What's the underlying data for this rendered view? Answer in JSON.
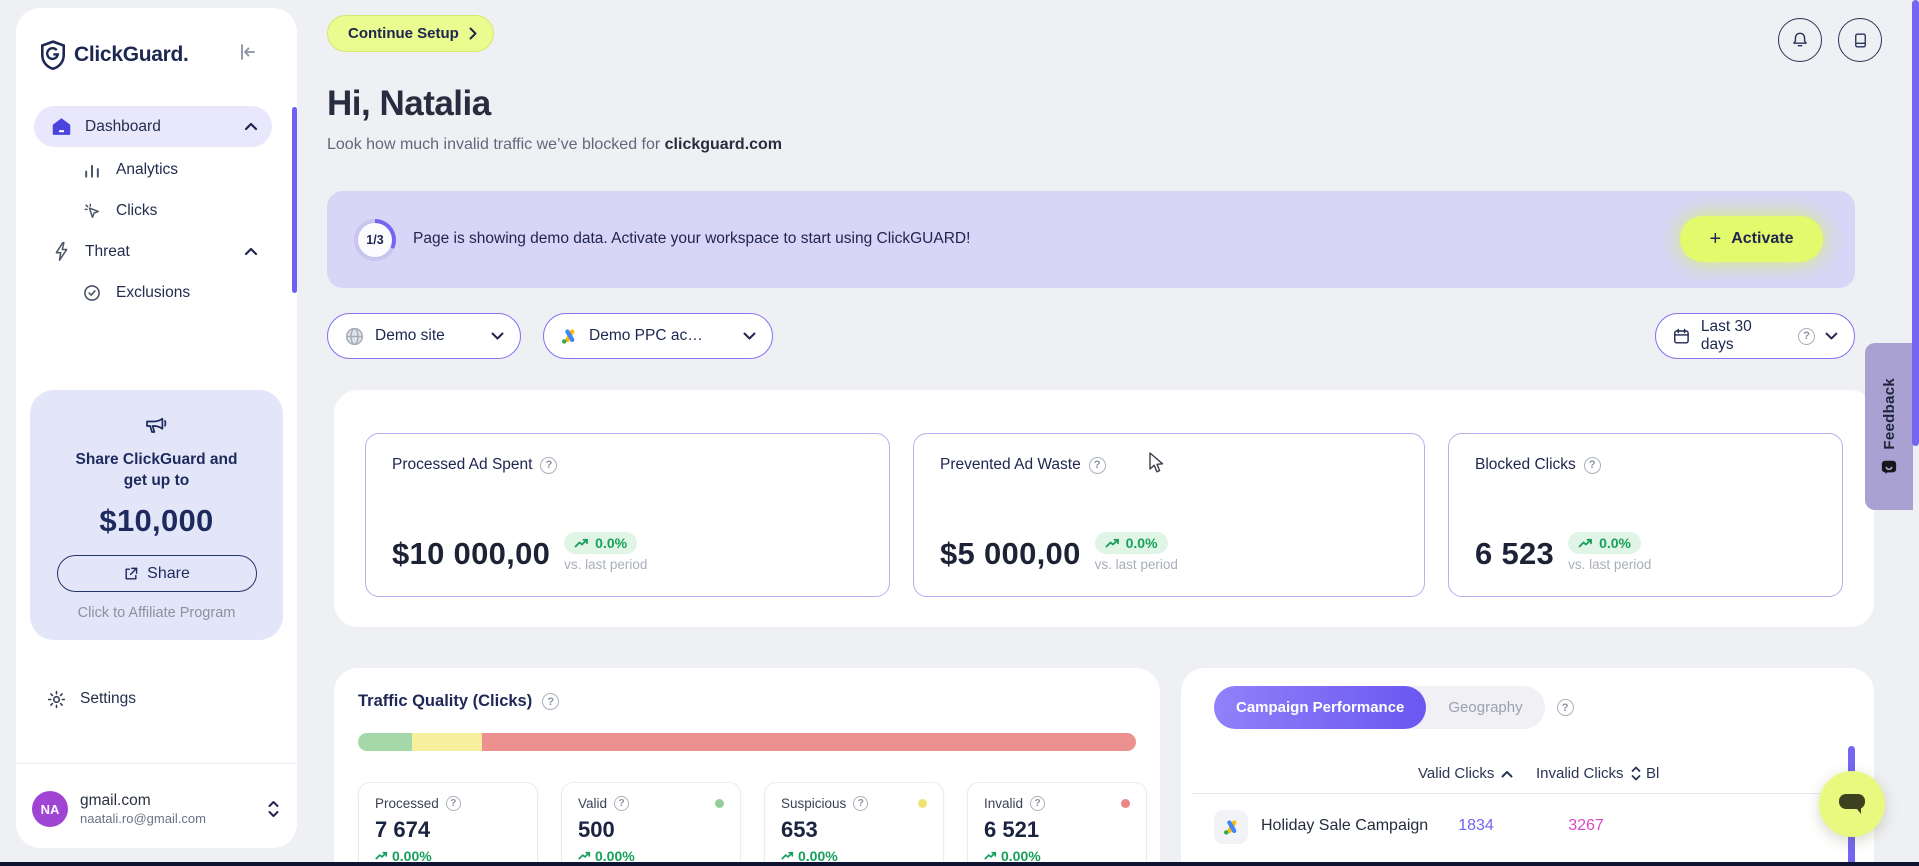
{
  "app": {
    "name": "ClickGuard."
  },
  "sidebar": {
    "nav": [
      {
        "label": "Dashboard"
      },
      {
        "label": "Analytics"
      },
      {
        "label": "Clicks"
      },
      {
        "label": "Threat"
      },
      {
        "label": "Exclusions"
      }
    ],
    "promo": {
      "line1": "Share ClickGuard and",
      "line2": "get up to",
      "amount": "$10,000",
      "share_label": "Share",
      "affiliate_label": "Click to Affiliate Program"
    },
    "settings_label": "Settings",
    "account": {
      "initials": "NA",
      "workspace": "gmail.com",
      "email": "naatali.ro@gmail.com"
    }
  },
  "header": {
    "continue_setup_label": "Continue Setup",
    "greeting": "Hi, Natalia",
    "subtitle_prefix": "Look how much invalid traffic we’ve blocked for ",
    "subtitle_domain": "clickguard.com"
  },
  "banner": {
    "progress": "1/3",
    "message": "Page is showing demo data. Activate your workspace to start using ClickGUARD!",
    "activate_label": "Activate",
    "plus": "+"
  },
  "filters": {
    "site": "Demo site",
    "ppc_account": "Demo PPC ac…",
    "date_range": "Last 30 days"
  },
  "stats": [
    {
      "label": "Processed Ad Spent",
      "value": "$10 000,00",
      "delta": "0.0%",
      "caption": "vs. last period"
    },
    {
      "label": "Prevented Ad Waste",
      "value": "$5 000,00",
      "delta": "0.0%",
      "caption": "vs. last period"
    },
    {
      "label": "Blocked Clicks",
      "value": "6 523",
      "delta": "0.0%",
      "caption": "vs. last period"
    }
  ],
  "traffic_quality": {
    "title": "Traffic Quality (Clicks)",
    "segments": [
      {
        "name": "valid",
        "pct": 7,
        "color": "#a6d7a8"
      },
      {
        "name": "suspicious",
        "pct": 9,
        "color": "#f6ef9d"
      },
      {
        "name": "invalid",
        "pct": 84,
        "color": "#ec9090"
      }
    ],
    "metrics": [
      {
        "label": "Processed",
        "value": "7 674",
        "delta": "0.00%"
      },
      {
        "label": "Valid",
        "value": "500",
        "delta": "0.00%",
        "dot_color": "#93ce96"
      },
      {
        "label": "Suspicious",
        "value": "653",
        "delta": "0.00%",
        "dot_color": "#f0e372"
      },
      {
        "label": "Invalid",
        "value": "6 521",
        "delta": "0.00%",
        "dot_color": "#ec8585"
      }
    ]
  },
  "campaigns": {
    "tab_active": "Campaign Performance",
    "tab_inactive": "Geography",
    "col_valid": "Valid Clicks",
    "col_invalid": "Invalid Clicks",
    "col_cutoff": "Bl",
    "rows": [
      {
        "name": "Holiday Sale Campaign",
        "valid": "1834",
        "invalid": "3267"
      }
    ]
  },
  "feedback_label": "Feedback",
  "colors": {
    "accent_purple": "#6e5df2",
    "lemon": "#e3fa6d",
    "valid_green": "#17a05b",
    "invalid_pink": "#dc49c6"
  }
}
